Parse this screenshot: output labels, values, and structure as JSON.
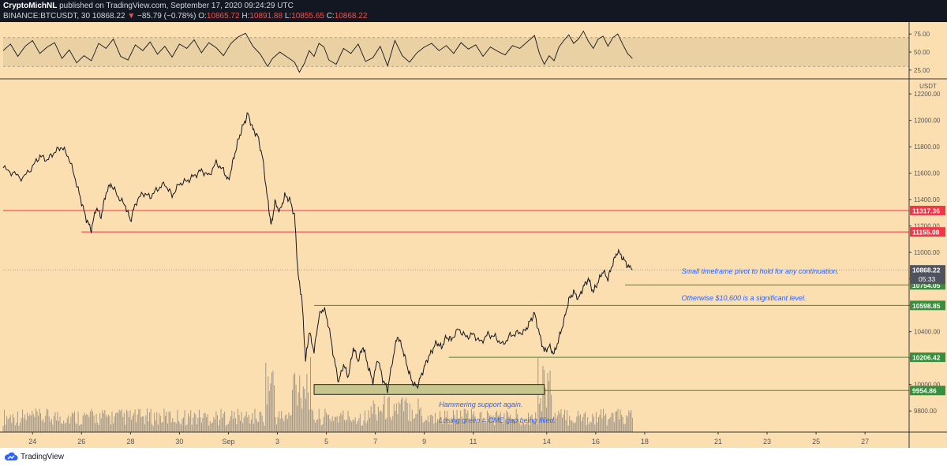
{
  "header": {
    "author": "CryptoMichNL",
    "published_text": "published on TradingView.com, September 17, 2020 09:24:29 UTC",
    "symbol": "BINANCE:BTCUSDT, 30",
    "last": "10868.22",
    "change_arrow": "▼",
    "change": "−85.79 (−0.78%)",
    "o_label": "O:",
    "o_value": "10865.72",
    "h_label": "H:",
    "h_value": "10891.88",
    "l_label": "L:",
    "l_value": "10855.65",
    "c_label": "C:",
    "c_value": "10868.22"
  },
  "footer": {
    "brand": "TradingView",
    "logo_icon": "tradingview-cloud-icon"
  },
  "colors": {
    "panel_bg": "#fcdfb0",
    "price_line": "#131722",
    "resistance": "#f23645",
    "support": "#388e3c",
    "box_fill": "#c8c68f",
    "note_text": "#2862ff",
    "volume": "#8a8680"
  },
  "chart_data": {
    "type": "line",
    "title": "",
    "currency_label": "USDT",
    "price_axis": {
      "ylim": [
        9640,
        12290
      ],
      "ticks": [
        9800,
        10000,
        10200,
        10400,
        10600,
        10800,
        11000,
        11200,
        11400,
        11600,
        11800,
        12000,
        12200
      ],
      "tick_labels": [
        "9800.00",
        "10000.00",
        "10200.00",
        "10400.00",
        "10600.00",
        "10800.00",
        "11000.00",
        "11200.00",
        "11400.00",
        "11600.00",
        "11800.00",
        "12000.00",
        "12200.00"
      ]
    },
    "time_axis": {
      "ticks": [
        {
          "label": "24",
          "day": 0
        },
        {
          "label": "26",
          "day": 2
        },
        {
          "label": "28",
          "day": 4
        },
        {
          "label": "30",
          "day": 6
        },
        {
          "label": "Sep",
          "day": 8
        },
        {
          "label": "3",
          "day": 10
        },
        {
          "label": "5",
          "day": 12
        },
        {
          "label": "7",
          "day": 14
        },
        {
          "label": "9",
          "day": 16
        },
        {
          "label": "11",
          "day": 18
        },
        {
          "label": "14",
          "day": 21
        },
        {
          "label": "16",
          "day": 23
        },
        {
          "label": "18",
          "day": 25
        },
        {
          "label": "21",
          "day": 28
        },
        {
          "label": "23",
          "day": 30
        },
        {
          "label": "25",
          "day": 32
        },
        {
          "label": "27",
          "day": 34
        }
      ],
      "xlim_days": [
        -1.2,
        35.8
      ]
    },
    "price_series": [
      {
        "day": -1.2,
        "v": 11640
      },
      {
        "day": -0.8,
        "v": 11600
      },
      {
        "day": -0.4,
        "v": 11560
      },
      {
        "day": 0.0,
        "v": 11650
      },
      {
        "day": 0.3,
        "v": 11730
      },
      {
        "day": 0.6,
        "v": 11700
      },
      {
        "day": 0.9,
        "v": 11760
      },
      {
        "day": 1.2,
        "v": 11800
      },
      {
        "day": 1.5,
        "v": 11710
      },
      {
        "day": 1.8,
        "v": 11520
      },
      {
        "day": 2.0,
        "v": 11380
      },
      {
        "day": 2.2,
        "v": 11250
      },
      {
        "day": 2.4,
        "v": 11170
      },
      {
        "day": 2.6,
        "v": 11340
      },
      {
        "day": 2.8,
        "v": 11270
      },
      {
        "day": 3.0,
        "v": 11450
      },
      {
        "day": 3.2,
        "v": 11520
      },
      {
        "day": 3.5,
        "v": 11420
      },
      {
        "day": 3.8,
        "v": 11350
      },
      {
        "day": 4.0,
        "v": 11240
      },
      {
        "day": 4.2,
        "v": 11370
      },
      {
        "day": 4.5,
        "v": 11450
      },
      {
        "day": 4.8,
        "v": 11420
      },
      {
        "day": 5.1,
        "v": 11480
      },
      {
        "day": 5.4,
        "v": 11520
      },
      {
        "day": 5.7,
        "v": 11430
      },
      {
        "day": 6.0,
        "v": 11520
      },
      {
        "day": 6.3,
        "v": 11540
      },
      {
        "day": 6.6,
        "v": 11580
      },
      {
        "day": 6.9,
        "v": 11620
      },
      {
        "day": 7.2,
        "v": 11580
      },
      {
        "day": 7.5,
        "v": 11680
      },
      {
        "day": 7.8,
        "v": 11620
      },
      {
        "day": 8.0,
        "v": 11540
      },
      {
        "day": 8.2,
        "v": 11700
      },
      {
        "day": 8.4,
        "v": 11850
      },
      {
        "day": 8.6,
        "v": 11960
      },
      {
        "day": 8.8,
        "v": 12050
      },
      {
        "day": 9.0,
        "v": 11930
      },
      {
        "day": 9.2,
        "v": 11880
      },
      {
        "day": 9.4,
        "v": 11710
      },
      {
        "day": 9.6,
        "v": 11400
      },
      {
        "day": 9.75,
        "v": 11200
      },
      {
        "day": 9.9,
        "v": 11380
      },
      {
        "day": 10.1,
        "v": 11310
      },
      {
        "day": 10.3,
        "v": 11430
      },
      {
        "day": 10.5,
        "v": 11400
      },
      {
        "day": 10.7,
        "v": 11280
      },
      {
        "day": 10.85,
        "v": 10820
      },
      {
        "day": 11.0,
        "v": 10650
      },
      {
        "day": 11.15,
        "v": 10180
      },
      {
        "day": 11.3,
        "v": 10400
      },
      {
        "day": 11.5,
        "v": 10250
      },
      {
        "day": 11.7,
        "v": 10520
      },
      {
        "day": 11.9,
        "v": 10580
      },
      {
        "day": 12.1,
        "v": 10440
      },
      {
        "day": 12.3,
        "v": 10210
      },
      {
        "day": 12.5,
        "v": 10020
      },
      {
        "day": 12.7,
        "v": 10150
      },
      {
        "day": 12.9,
        "v": 10060
      },
      {
        "day": 13.1,
        "v": 10280
      },
      {
        "day": 13.3,
        "v": 10180
      },
      {
        "day": 13.5,
        "v": 10290
      },
      {
        "day": 13.7,
        "v": 10140
      },
      {
        "day": 13.9,
        "v": 10020
      },
      {
        "day": 14.1,
        "v": 10200
      },
      {
        "day": 14.3,
        "v": 10040
      },
      {
        "day": 14.5,
        "v": 9960
      },
      {
        "day": 14.7,
        "v": 10180
      },
      {
        "day": 14.9,
        "v": 10370
      },
      {
        "day": 15.1,
        "v": 10280
      },
      {
        "day": 15.3,
        "v": 10140
      },
      {
        "day": 15.5,
        "v": 10020
      },
      {
        "day": 15.7,
        "v": 9980
      },
      {
        "day": 15.9,
        "v": 10080
      },
      {
        "day": 16.1,
        "v": 10180
      },
      {
        "day": 16.3,
        "v": 10250
      },
      {
        "day": 16.5,
        "v": 10320
      },
      {
        "day": 16.7,
        "v": 10280
      },
      {
        "day": 16.9,
        "v": 10360
      },
      {
        "day": 17.1,
        "v": 10340
      },
      {
        "day": 17.4,
        "v": 10420
      },
      {
        "day": 17.7,
        "v": 10360
      },
      {
        "day": 18.0,
        "v": 10380
      },
      {
        "day": 18.3,
        "v": 10320
      },
      {
        "day": 18.6,
        "v": 10380
      },
      {
        "day": 18.9,
        "v": 10360
      },
      {
        "day": 19.2,
        "v": 10300
      },
      {
        "day": 19.5,
        "v": 10370
      },
      {
        "day": 19.8,
        "v": 10390
      },
      {
        "day": 20.1,
        "v": 10400
      },
      {
        "day": 20.3,
        "v": 10470
      },
      {
        "day": 20.5,
        "v": 10540
      },
      {
        "day": 20.7,
        "v": 10380
      },
      {
        "day": 20.9,
        "v": 10250
      },
      {
        "day": 21.1,
        "v": 10290
      },
      {
        "day": 21.3,
        "v": 10230
      },
      {
        "day": 21.5,
        "v": 10350
      },
      {
        "day": 21.7,
        "v": 10480
      },
      {
        "day": 21.9,
        "v": 10640
      },
      {
        "day": 22.1,
        "v": 10700
      },
      {
        "day": 22.3,
        "v": 10650
      },
      {
        "day": 22.5,
        "v": 10740
      },
      {
        "day": 22.7,
        "v": 10800
      },
      {
        "day": 22.9,
        "v": 10700
      },
      {
        "day": 23.1,
        "v": 10780
      },
      {
        "day": 23.3,
        "v": 10860
      },
      {
        "day": 23.5,
        "v": 10800
      },
      {
        "day": 23.7,
        "v": 10920
      },
      {
        "day": 23.9,
        "v": 11010
      },
      {
        "day": 24.1,
        "v": 10960
      },
      {
        "day": 24.3,
        "v": 10900
      },
      {
        "day": 24.5,
        "v": 10868
      }
    ],
    "oscillator": {
      "ticks": [
        25,
        50,
        75
      ],
      "tick_labels": [
        "25.00",
        "50.00",
        "75.00"
      ],
      "band": [
        30,
        70
      ],
      "ylim": [
        15,
        85
      ],
      "series": [
        {
          "day": -1.2,
          "v": 52
        },
        {
          "day": -0.9,
          "v": 61
        },
        {
          "day": -0.6,
          "v": 44
        },
        {
          "day": -0.3,
          "v": 58
        },
        {
          "day": 0.0,
          "v": 66
        },
        {
          "day": 0.3,
          "v": 48
        },
        {
          "day": 0.6,
          "v": 57
        },
        {
          "day": 0.9,
          "v": 63
        },
        {
          "day": 1.2,
          "v": 41
        },
        {
          "day": 1.5,
          "v": 53
        },
        {
          "day": 1.8,
          "v": 35
        },
        {
          "day": 2.1,
          "v": 45
        },
        {
          "day": 2.4,
          "v": 38
        },
        {
          "day": 2.7,
          "v": 62
        },
        {
          "day": 3.0,
          "v": 55
        },
        {
          "day": 3.3,
          "v": 68
        },
        {
          "day": 3.6,
          "v": 44
        },
        {
          "day": 3.9,
          "v": 39
        },
        {
          "day": 4.2,
          "v": 60
        },
        {
          "day": 4.5,
          "v": 52
        },
        {
          "day": 4.8,
          "v": 64
        },
        {
          "day": 5.1,
          "v": 47
        },
        {
          "day": 5.4,
          "v": 58
        },
        {
          "day": 5.7,
          "v": 43
        },
        {
          "day": 6.0,
          "v": 61
        },
        {
          "day": 6.3,
          "v": 55
        },
        {
          "day": 6.6,
          "v": 67
        },
        {
          "day": 6.9,
          "v": 49
        },
        {
          "day": 7.2,
          "v": 63
        },
        {
          "day": 7.5,
          "v": 56
        },
        {
          "day": 7.8,
          "v": 45
        },
        {
          "day": 8.1,
          "v": 62
        },
        {
          "day": 8.4,
          "v": 71
        },
        {
          "day": 8.7,
          "v": 76
        },
        {
          "day": 9.0,
          "v": 58
        },
        {
          "day": 9.3,
          "v": 47
        },
        {
          "day": 9.6,
          "v": 30
        },
        {
          "day": 9.8,
          "v": 41
        },
        {
          "day": 10.1,
          "v": 50
        },
        {
          "day": 10.4,
          "v": 43
        },
        {
          "day": 10.7,
          "v": 36
        },
        {
          "day": 10.9,
          "v": 22
        },
        {
          "day": 11.1,
          "v": 34
        },
        {
          "day": 11.3,
          "v": 52
        },
        {
          "day": 11.5,
          "v": 44
        },
        {
          "day": 11.7,
          "v": 62
        },
        {
          "day": 11.9,
          "v": 57
        },
        {
          "day": 12.1,
          "v": 39
        },
        {
          "day": 12.4,
          "v": 33
        },
        {
          "day": 12.7,
          "v": 55
        },
        {
          "day": 13.0,
          "v": 48
        },
        {
          "day": 13.3,
          "v": 61
        },
        {
          "day": 13.6,
          "v": 37
        },
        {
          "day": 13.9,
          "v": 42
        },
        {
          "day": 14.2,
          "v": 58
        },
        {
          "day": 14.5,
          "v": 31
        },
        {
          "day": 14.8,
          "v": 66
        },
        {
          "day": 15.1,
          "v": 45
        },
        {
          "day": 15.4,
          "v": 36
        },
        {
          "day": 15.7,
          "v": 49
        },
        {
          "day": 16.0,
          "v": 57
        },
        {
          "day": 16.3,
          "v": 62
        },
        {
          "day": 16.6,
          "v": 52
        },
        {
          "day": 16.9,
          "v": 59
        },
        {
          "day": 17.2,
          "v": 48
        },
        {
          "day": 17.5,
          "v": 63
        },
        {
          "day": 17.8,
          "v": 54
        },
        {
          "day": 18.1,
          "v": 60
        },
        {
          "day": 18.4,
          "v": 44
        },
        {
          "day": 18.7,
          "v": 57
        },
        {
          "day": 19.0,
          "v": 51
        },
        {
          "day": 19.3,
          "v": 46
        },
        {
          "day": 19.6,
          "v": 59
        },
        {
          "day": 19.9,
          "v": 55
        },
        {
          "day": 20.2,
          "v": 64
        },
        {
          "day": 20.5,
          "v": 73
        },
        {
          "day": 20.7,
          "v": 48
        },
        {
          "day": 20.9,
          "v": 33
        },
        {
          "day": 21.1,
          "v": 45
        },
        {
          "day": 21.3,
          "v": 38
        },
        {
          "day": 21.5,
          "v": 57
        },
        {
          "day": 21.7,
          "v": 66
        },
        {
          "day": 21.9,
          "v": 74
        },
        {
          "day": 22.1,
          "v": 62
        },
        {
          "day": 22.3,
          "v": 68
        },
        {
          "day": 22.5,
          "v": 79
        },
        {
          "day": 22.7,
          "v": 65
        },
        {
          "day": 22.9,
          "v": 55
        },
        {
          "day": 23.1,
          "v": 68
        },
        {
          "day": 23.3,
          "v": 72
        },
        {
          "day": 23.5,
          "v": 58
        },
        {
          "day": 23.7,
          "v": 70
        },
        {
          "day": 23.9,
          "v": 75
        },
        {
          "day": 24.1,
          "v": 61
        },
        {
          "day": 24.3,
          "v": 48
        },
        {
          "day": 24.5,
          "v": 41
        }
      ]
    },
    "levels": [
      {
        "value": 11317.36,
        "label": "11317.36",
        "kind": "resistance",
        "start_day": -1.2
      },
      {
        "value": 11155.08,
        "label": "11155.08",
        "kind": "resistance",
        "start_day": 2.0
      },
      {
        "value": 10754.05,
        "label": "10754.05",
        "kind": "support",
        "start_day": 24.2
      },
      {
        "value": 10598.85,
        "label": "10598.85",
        "kind": "support",
        "start_day": 11.5
      },
      {
        "value": 10206.42,
        "label": "10206.42",
        "kind": "support",
        "start_day": 17.0
      },
      {
        "value": 9954.86,
        "label": "9954.86",
        "kind": "support",
        "start_day": 11.5
      }
    ],
    "current_price": {
      "value": 10868.22,
      "label": "10868.22",
      "countdown": "05:33"
    },
    "support_box": {
      "start_day": 11.5,
      "end_day": 20.9,
      "top": 10000,
      "bottom": 9925
    },
    "annotations": [
      {
        "text": "Small timeframe pivot to hold for any continuation.",
        "day": 26.5,
        "price": 10840
      },
      {
        "text": "Otherwise $10,600 is a significant level.",
        "day": 26.5,
        "price": 10636
      },
      {
        "text": "Hammering support again.",
        "day": 16.6,
        "price": 9830
      },
      {
        "text": "Losing green = CME gap being filled.",
        "day": 16.6,
        "price": 9713
      }
    ]
  }
}
